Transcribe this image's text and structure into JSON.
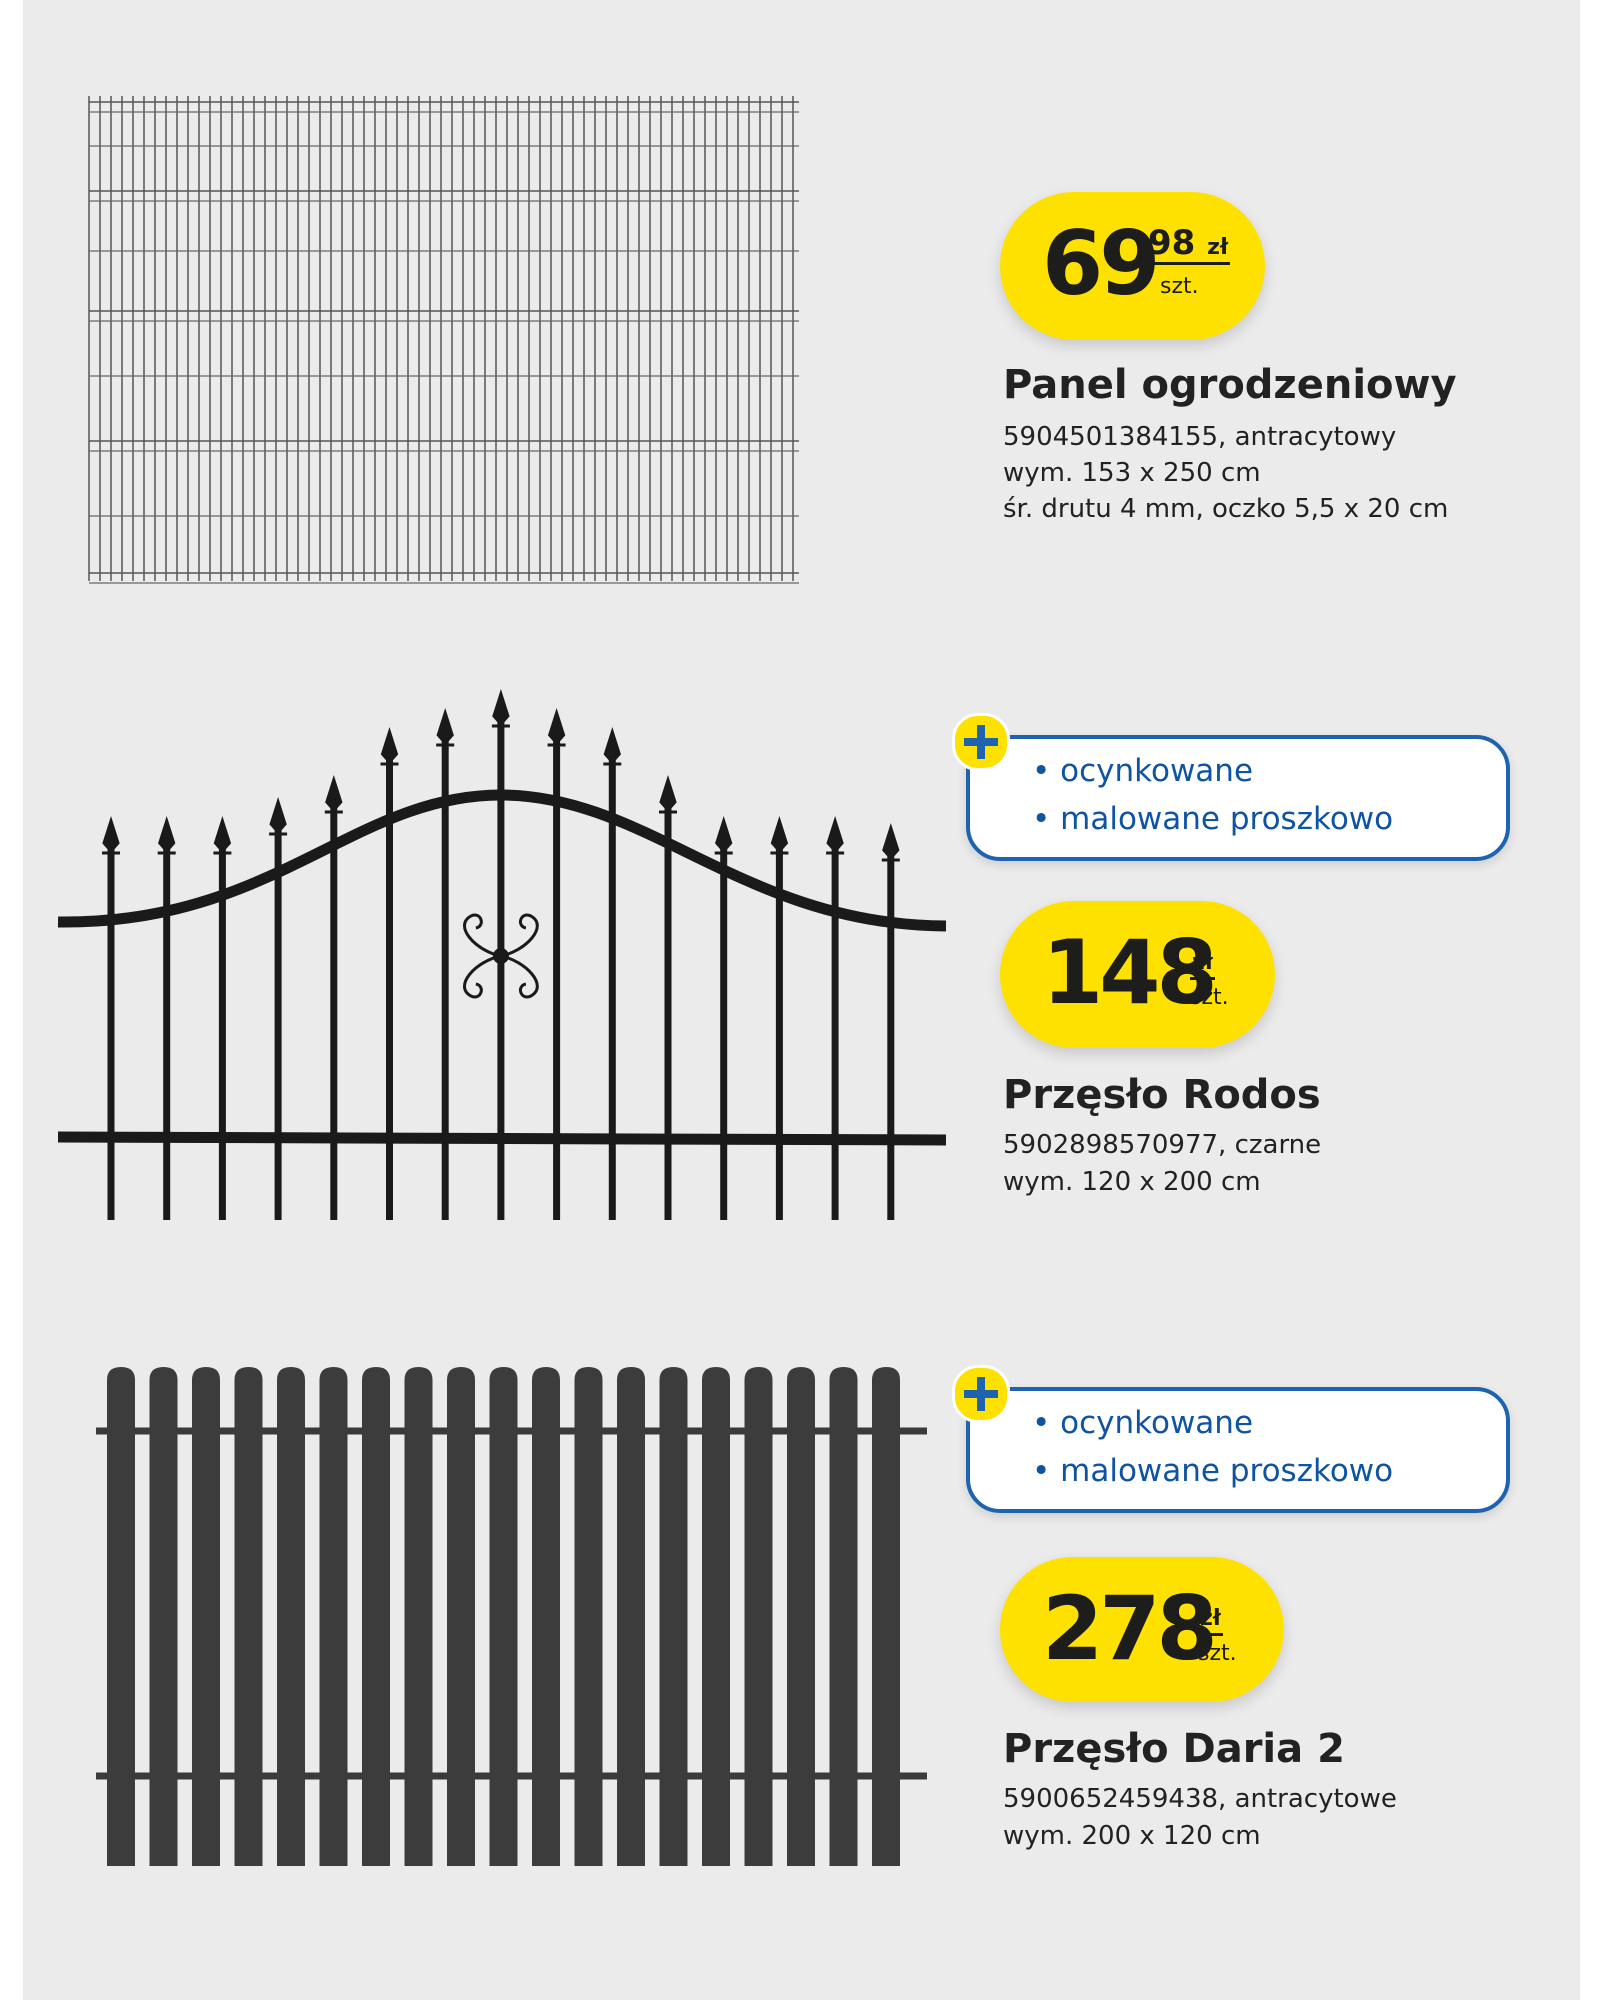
{
  "products": [
    {
      "price": {
        "main": "69",
        "cents": "98",
        "currency": "zł",
        "unit": "szt."
      },
      "name": "Panel ogrodzeniowy",
      "details": [
        "5904501384155, antracytowy",
        "wym. 153 x 250 cm",
        "śr. drutu 4 mm, oczko 5,5 x 20 cm"
      ]
    },
    {
      "features": [
        "• ocynkowane",
        "• malowane proszkowo"
      ],
      "price": {
        "main": "148",
        "currency": "zł",
        "unit": "szt."
      },
      "name": "Przęsło Rodos",
      "details": [
        "5902898570977, czarne",
        "wym. 120 x 200 cm"
      ]
    },
    {
      "features": [
        "• ocynkowane",
        "• malowane proszkowo"
      ],
      "price": {
        "main": "278",
        "currency": "zł",
        "unit": "szt."
      },
      "name": "Przęsło Daria 2",
      "details": [
        "5900652459438, antracytowe",
        "wym. 200 x 120 cm"
      ]
    }
  ]
}
